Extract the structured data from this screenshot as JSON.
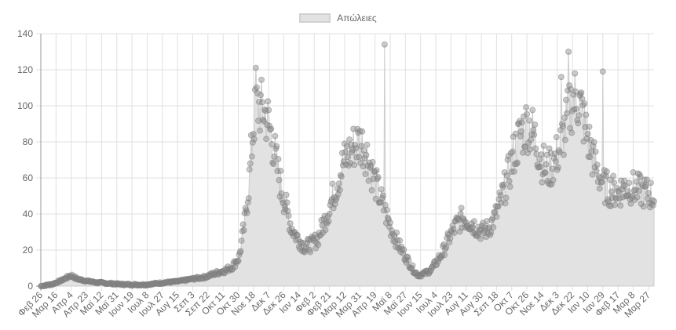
{
  "chart_data": {
    "type": "line",
    "title": "",
    "xlabel": "",
    "ylabel": "",
    "ylim": [
      0,
      140
    ],
    "yticks": [
      0,
      20,
      40,
      60,
      80,
      100,
      120,
      140
    ],
    "grid": true,
    "legend_position": "top",
    "series": [
      {
        "name": "Απώλειες",
        "fill_color": "#e2e2e2",
        "line_color": "#cccccc",
        "point_color": "rgba(140,140,140,0.45)",
        "start_date": "2020-02-26",
        "end_date": "2022-04-03",
        "anchors_day_value": [
          [
            0,
            0
          ],
          [
            14,
            1
          ],
          [
            25,
            3
          ],
          [
            38,
            6
          ],
          [
            45,
            4
          ],
          [
            56,
            3
          ],
          [
            70,
            2
          ],
          [
            85,
            1.5
          ],
          [
            100,
            1
          ],
          [
            115,
            0.8
          ],
          [
            130,
            0.8
          ],
          [
            140,
            1.2
          ],
          [
            155,
            2
          ],
          [
            170,
            2.5
          ],
          [
            190,
            4
          ],
          [
            205,
            5
          ],
          [
            218,
            7
          ],
          [
            232,
            9
          ],
          [
            240,
            11
          ],
          [
            248,
            16
          ],
          [
            255,
            35
          ],
          [
            261,
            60
          ],
          [
            266,
            90
          ],
          [
            270,
            100
          ],
          [
            278,
            98
          ],
          [
            284,
            92
          ],
          [
            290,
            80
          ],
          [
            298,
            60
          ],
          [
            306,
            45
          ],
          [
            314,
            32
          ],
          [
            322,
            26
          ],
          [
            330,
            22
          ],
          [
            338,
            23
          ],
          [
            346,
            26
          ],
          [
            354,
            35
          ],
          [
            362,
            45
          ],
          [
            370,
            56
          ],
          [
            378,
            68
          ],
          [
            386,
            74
          ],
          [
            392,
            78
          ],
          [
            398,
            80
          ],
          [
            404,
            78
          ],
          [
            410,
            70
          ],
          [
            418,
            58
          ],
          [
            426,
            47
          ],
          [
            434,
            37
          ],
          [
            442,
            28
          ],
          [
            450,
            21
          ],
          [
            458,
            15
          ],
          [
            466,
            9
          ],
          [
            472,
            6
          ],
          [
            480,
            7
          ],
          [
            488,
            9
          ],
          [
            496,
            14
          ],
          [
            504,
            20
          ],
          [
            512,
            28
          ],
          [
            520,
            34
          ],
          [
            528,
            38
          ],
          [
            536,
            36
          ],
          [
            544,
            33
          ],
          [
            552,
            30
          ],
          [
            560,
            32
          ],
          [
            568,
            38
          ],
          [
            576,
            48
          ],
          [
            584,
            60
          ],
          [
            592,
            74
          ],
          [
            600,
            84
          ],
          [
            608,
            90
          ],
          [
            616,
            85
          ],
          [
            624,
            73
          ],
          [
            632,
            64
          ],
          [
            640,
            67
          ],
          [
            648,
            75
          ],
          [
            656,
            88
          ],
          [
            664,
            102
          ],
          [
            670,
            106
          ],
          [
            676,
            98
          ],
          [
            682,
            86
          ],
          [
            690,
            72
          ],
          [
            698,
            62
          ],
          [
            706,
            55
          ],
          [
            714,
            53
          ],
          [
            722,
            52
          ],
          [
            730,
            55
          ],
          [
            737,
            55
          ],
          [
            767,
            50
          ]
        ],
        "notable_spikes": [
          {
            "approx_date": "2020-11-21",
            "value": 121
          },
          {
            "approx_date": "2021-05-01",
            "value": 134
          },
          {
            "approx_date": "2021-12-17",
            "value": 130
          },
          {
            "approx_date": "2022-01-29",
            "value": 119
          },
          {
            "approx_date": "2021-12-08",
            "value": 116
          }
        ]
      }
    ],
    "x_tick_labels": [
      "Φεβ 26",
      "Μαρ 16",
      "Απρ 4",
      "Απρ 23",
      "Μαϊ 12",
      "Μαϊ 31",
      "Ιουν 19",
      "Ιουλ 8",
      "Ιουλ 27",
      "Αυγ 15",
      "Σεπ 3",
      "Σεπ 22",
      "Οκτ 11",
      "Οκτ 30",
      "Νοε 18",
      "Δεκ 7",
      "Δεκ 26",
      "Ιαν 14",
      "Φεβ 2",
      "Φεβ 21",
      "Μαρ 12",
      "Μαρ 31",
      "Απρ 19",
      "Μαϊ 8",
      "Μαϊ 27",
      "Ιουν 15",
      "Ιουλ 4",
      "Ιουλ 23",
      "Αυγ 11",
      "Αυγ 30",
      "Σεπ 18",
      "Οκτ 7",
      "Οκτ 26",
      "Νοε 14",
      "Δεκ 3",
      "Δεκ 22",
      "Ιαν 10",
      "Ιαν 29",
      "Φεβ 17",
      "Μαρ 8",
      "Μαρ 27"
    ],
    "x_tick_interval_days": 19
  },
  "legend": {
    "label": "Απώλειες"
  },
  "colors": {
    "grid": "#e0e0e0",
    "axis": "#999999",
    "tick_text": "#666666",
    "fill": "#e2e2e2"
  }
}
